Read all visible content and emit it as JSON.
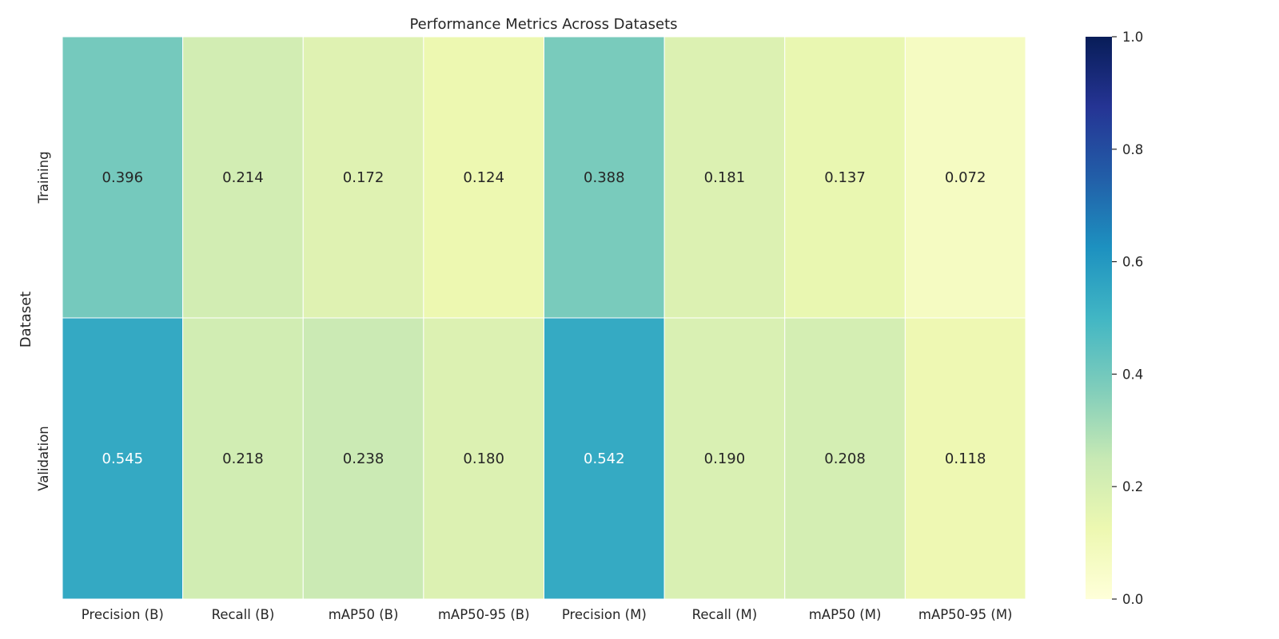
{
  "chart_data": {
    "type": "heatmap",
    "title": "Performance Metrics Across Datasets",
    "xlabel": "",
    "ylabel": "Dataset",
    "columns": [
      "Precision (B)",
      "Recall (B)",
      "mAP50 (B)",
      "mAP50-95 (B)",
      "Precision (M)",
      "Recall (M)",
      "mAP50 (M)",
      "mAP50-95 (M)"
    ],
    "rows": [
      "Training",
      "Validation"
    ],
    "values": [
      [
        0.396,
        0.214,
        0.172,
        0.124,
        0.388,
        0.181,
        0.137,
        0.072
      ],
      [
        0.545,
        0.218,
        0.238,
        0.18,
        0.542,
        0.19,
        0.208,
        0.118
      ]
    ],
    "value_labels": [
      [
        "0.396",
        "0.214",
        "0.172",
        "0.124",
        "0.388",
        "0.181",
        "0.137",
        "0.072"
      ],
      [
        "0.545",
        "0.218",
        "0.238",
        "0.180",
        "0.542",
        "0.190",
        "0.208",
        "0.118"
      ]
    ],
    "vmin": 0,
    "vmax": 1,
    "colormap": "YlGnBu",
    "colorbar": {
      "ticks": [
        0.0,
        0.2,
        0.4,
        0.6,
        0.8,
        1.0
      ],
      "tick_labels": [
        "0.0",
        "0.2",
        "0.4",
        "0.6",
        "0.8",
        "1.0"
      ]
    },
    "grid": false,
    "cell_borders": "#ffffff"
  }
}
